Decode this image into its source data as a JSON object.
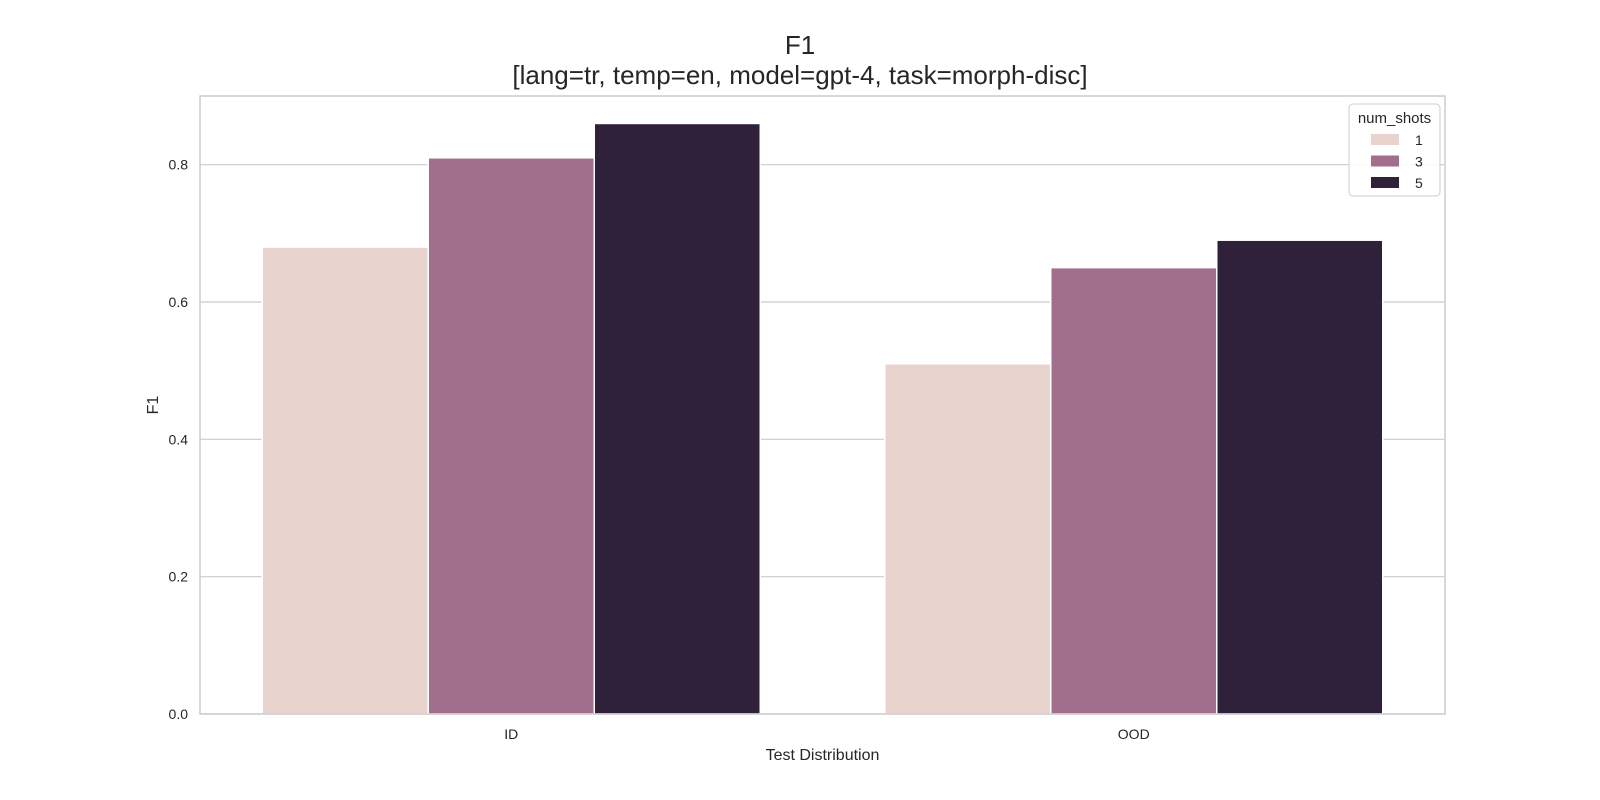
{
  "chart_data": {
    "type": "bar",
    "title": "F1",
    "subtitle": "[lang=tr, temp=en, model=gpt-4, task=morph-disc]",
    "xlabel": "Test Distribution",
    "ylabel": "F1",
    "categories": [
      "ID",
      "OOD"
    ],
    "ylim": [
      0,
      0.9
    ],
    "yticks": [
      "0.0",
      "0.2",
      "0.4",
      "0.6",
      "0.8"
    ],
    "grid": true,
    "legend": {
      "title": "num_shots",
      "position": "top-right"
    },
    "series": [
      {
        "name": "1",
        "color": "#e8d3cf",
        "values": [
          0.68,
          0.51
        ]
      },
      {
        "name": "3",
        "color": "#a16f8c",
        "values": [
          0.81,
          0.65
        ]
      },
      {
        "name": "5",
        "color": "#2f213a",
        "values": [
          0.86,
          0.69
        ]
      }
    ]
  }
}
